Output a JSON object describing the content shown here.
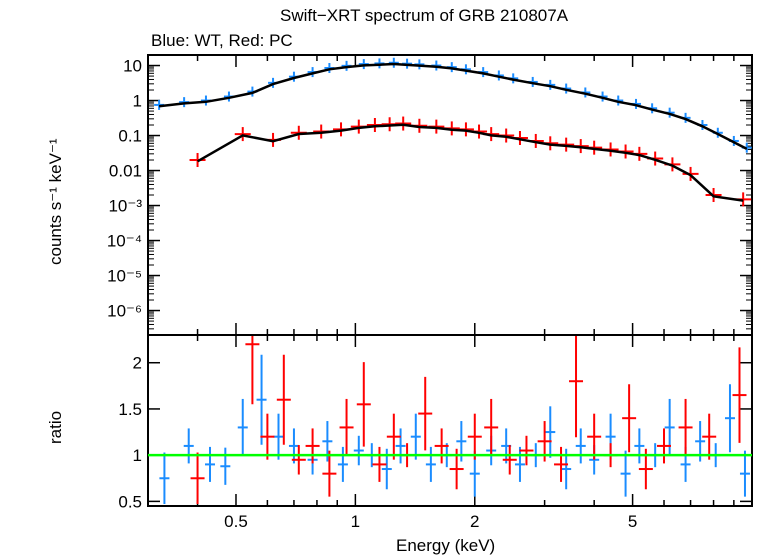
{
  "title": "Swift−XRT spectrum of GRB 210807A",
  "subtitle": "Blue: WT, Red: PC",
  "colors": {
    "wt": "#1a8cff",
    "pc": "#ff0000",
    "model": "#000000",
    "ref": "#00ff00"
  },
  "chart_data": [
    {
      "type": "scatter",
      "panel": "spectrum",
      "xlabel": "Energy (keV)",
      "ylabel": "counts s⁻¹ keV⁻¹",
      "xscale": "log",
      "yscale": "log",
      "xlim": [
        0.3,
        10
      ],
      "ylim": [
        2e-07,
        20
      ],
      "yticks": [
        {
          "v": 10,
          "label": "10"
        },
        {
          "v": 1,
          "label": "1"
        },
        {
          "v": 0.1,
          "label": "0.1"
        },
        {
          "v": 0.01,
          "label": "0.01"
        },
        {
          "v": 0.001,
          "label": "10⁻³"
        },
        {
          "v": 0.0001,
          "label": "10⁻⁴"
        },
        {
          "v": 1e-05,
          "label": "10⁻⁵"
        },
        {
          "v": 1e-06,
          "label": "10⁻⁶"
        }
      ],
      "series": [
        {
          "name": "WT",
          "color": "#1a8cff",
          "x": [
            0.32,
            0.37,
            0.42,
            0.48,
            0.55,
            0.62,
            0.7,
            0.78,
            0.86,
            0.95,
            1.05,
            1.15,
            1.25,
            1.35,
            1.45,
            1.6,
            1.75,
            1.9,
            2.1,
            2.3,
            2.5,
            2.8,
            3.1,
            3.4,
            3.8,
            4.2,
            4.6,
            5.1,
            5.6,
            6.2,
            6.8,
            7.5,
            8.2,
            9.0,
            9.7
          ],
          "y": [
            0.75,
            0.9,
            1.0,
            1.3,
            1.8,
            3.2,
            4.8,
            6.5,
            8.5,
            9.8,
            11.0,
            11.5,
            12.0,
            11.3,
            10.8,
            10.0,
            9.0,
            7.8,
            6.5,
            5.2,
            4.3,
            3.4,
            2.8,
            2.2,
            1.7,
            1.3,
            1.0,
            0.8,
            0.6,
            0.45,
            0.32,
            0.2,
            0.12,
            0.07,
            0.045
          ]
        },
        {
          "name": "PC",
          "color": "#ff0000",
          "x": [
            0.4,
            0.52,
            0.62,
            0.72,
            0.82,
            0.92,
            1.02,
            1.12,
            1.22,
            1.32,
            1.45,
            1.6,
            1.75,
            1.9,
            2.05,
            2.2,
            2.4,
            2.6,
            2.85,
            3.1,
            3.4,
            3.7,
            4.0,
            4.4,
            4.8,
            5.2,
            5.7,
            6.3,
            7.0,
            8.0,
            9.5
          ],
          "y": [
            0.02,
            0.11,
            0.075,
            0.12,
            0.13,
            0.15,
            0.18,
            0.2,
            0.21,
            0.22,
            0.19,
            0.18,
            0.16,
            0.15,
            0.13,
            0.11,
            0.1,
            0.085,
            0.07,
            0.06,
            0.055,
            0.05,
            0.045,
            0.04,
            0.035,
            0.03,
            0.022,
            0.015,
            0.008,
            0.002,
            0.0015
          ]
        }
      ]
    },
    {
      "type": "scatter",
      "panel": "ratio",
      "xlabel": "Energy (keV)",
      "ylabel": "ratio",
      "xscale": "log",
      "xlim": [
        0.3,
        10
      ],
      "ylim": [
        0.45,
        2.3
      ],
      "xticks": [
        {
          "v": 0.5,
          "label": "0.5"
        },
        {
          "v": 1,
          "label": "1"
        },
        {
          "v": 2,
          "label": "2"
        },
        {
          "v": 5,
          "label": "5"
        }
      ],
      "yticks": [
        {
          "v": 0.5,
          "label": "0.5"
        },
        {
          "v": 1,
          "label": "1"
        },
        {
          "v": 1.5,
          "label": "1.5"
        },
        {
          "v": 2,
          "label": "2"
        }
      ],
      "reference_line": 1,
      "series": [
        {
          "name": "WT",
          "color": "#1a8cff",
          "x": [
            0.33,
            0.38,
            0.43,
            0.47,
            0.52,
            0.58,
            0.64,
            0.7,
            0.78,
            0.85,
            0.93,
            1.02,
            1.1,
            1.2,
            1.3,
            1.42,
            1.55,
            1.7,
            1.85,
            2.0,
            2.2,
            2.4,
            2.6,
            2.85,
            3.1,
            3.4,
            3.7,
            4.0,
            4.4,
            4.8,
            5.2,
            5.7,
            6.2,
            6.8,
            7.4,
            8.1,
            8.8,
            9.6
          ],
          "y": [
            0.75,
            1.1,
            0.9,
            0.88,
            1.3,
            1.6,
            1.2,
            1.1,
            0.95,
            1.15,
            0.9,
            1.05,
            1.0,
            0.85,
            1.1,
            1.2,
            0.9,
            1.0,
            1.15,
            0.8,
            1.05,
            1.1,
            0.9,
            1.0,
            1.25,
            0.85,
            1.1,
            0.95,
            1.2,
            0.8,
            1.1,
            1.0,
            1.3,
            0.9,
            1.15,
            1.0,
            1.4,
            0.8
          ]
        },
        {
          "name": "PC",
          "color": "#ff0000",
          "x": [
            0.4,
            0.55,
            0.6,
            0.66,
            0.72,
            0.78,
            0.86,
            0.95,
            1.05,
            1.15,
            1.25,
            1.35,
            1.5,
            1.65,
            1.8,
            2.0,
            2.2,
            2.45,
            2.7,
            3.0,
            3.3,
            3.6,
            4.0,
            4.4,
            4.9,
            5.4,
            6.0,
            6.8,
            7.8,
            9.3
          ],
          "y": [
            0.75,
            2.2,
            1.2,
            1.6,
            0.95,
            1.1,
            0.8,
            1.3,
            1.55,
            0.9,
            1.2,
            1.0,
            1.45,
            1.1,
            0.85,
            1.2,
            1.3,
            0.95,
            1.05,
            1.15,
            0.9,
            1.8,
            1.2,
            1.0,
            1.4,
            0.85,
            1.1,
            1.3,
            1.2,
            1.65
          ]
        }
      ]
    }
  ]
}
